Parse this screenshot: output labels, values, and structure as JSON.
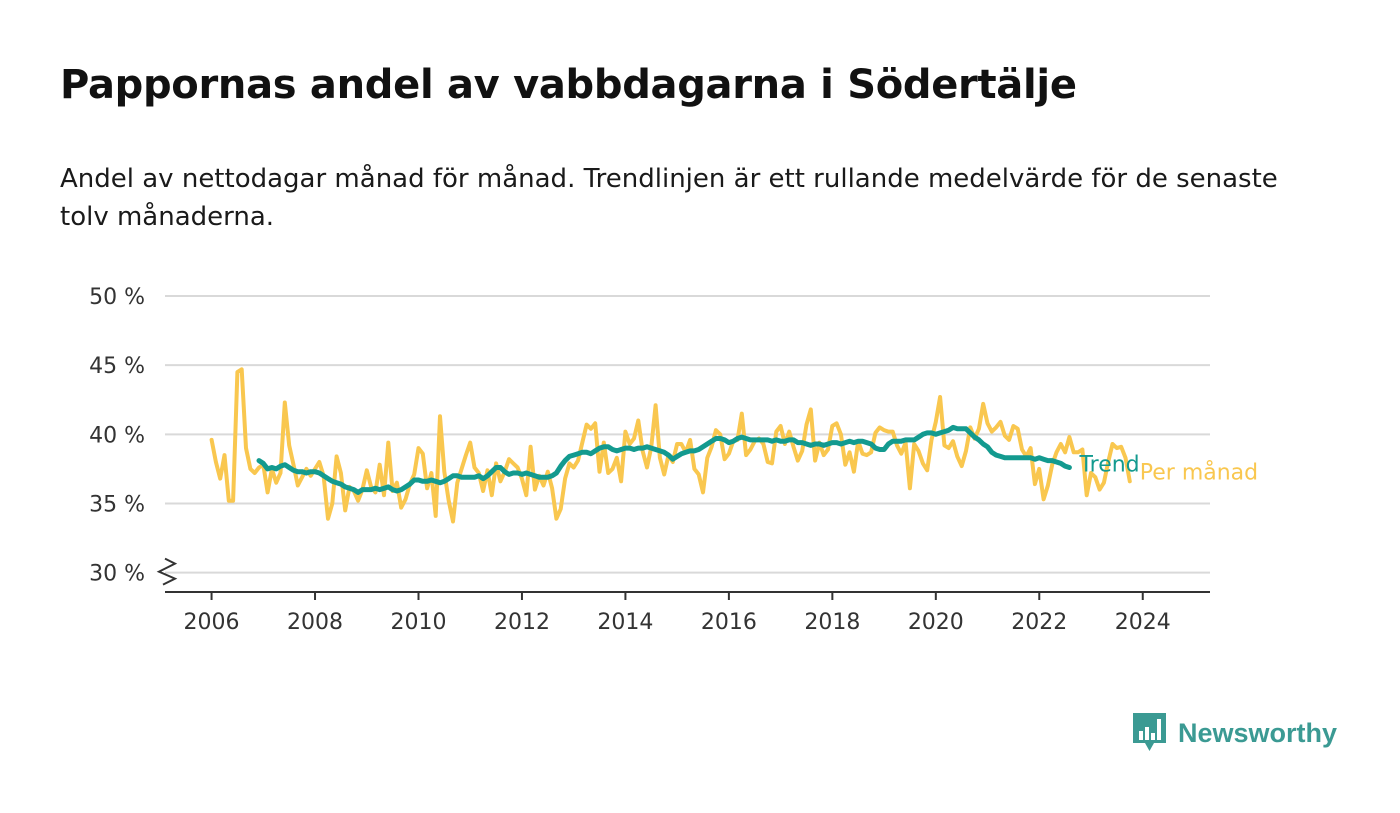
{
  "title": "Pappornas andel av vabbdagarna i Södertälje",
  "subtitle": "Andel av nettodagar månad för månad. Trendlinjen är ett rullande medelvärde för de senaste tolv månaderna.",
  "brand": {
    "name": "Newsworthy",
    "icon": "newsworthy-logo-icon",
    "color": "#3b9a93"
  },
  "chart_data": {
    "type": "line",
    "title": "Pappornas andel av vabbdagarna i Södertälje",
    "subtitle": "Andel av nettodagar månad för månad. Trendlinjen är ett rullande medelvärde för de senaste tolv månaderna.",
    "xlabel": "",
    "ylabel": "",
    "xlim": [
      2005.1,
      2025.3
    ],
    "ylim": [
      28.6,
      50
    ],
    "y_axis_break": true,
    "grid": "horizontal",
    "x_ticks": [
      {
        "value": 2006,
        "label": "2006"
      },
      {
        "value": 2008,
        "label": "2008"
      },
      {
        "value": 2010,
        "label": "2010"
      },
      {
        "value": 2012,
        "label": "2012"
      },
      {
        "value": 2014,
        "label": "2014"
      },
      {
        "value": 2016,
        "label": "2016"
      },
      {
        "value": 2018,
        "label": "2018"
      },
      {
        "value": 2020,
        "label": "2020"
      },
      {
        "value": 2022,
        "label": "2022"
      },
      {
        "value": 2024,
        "label": "2024"
      }
    ],
    "y_ticks": [
      {
        "value": 30,
        "label": "30 %"
      },
      {
        "value": 35,
        "label": "35 %"
      },
      {
        "value": 40,
        "label": "40 %"
      },
      {
        "value": 45,
        "label": "45 %"
      },
      {
        "value": 50,
        "label": "50 %"
      }
    ],
    "series": [
      {
        "name": "Per månad",
        "color": "#f9c74f",
        "x_start": 2006.0,
        "step": 0.08333,
        "values": [
          39.6,
          38,
          36.8,
          38.5,
          35.2,
          35.2,
          44.5,
          44.7,
          39,
          37.5,
          37.2,
          37.6,
          37.8,
          35.8,
          37.5,
          36.5,
          37.2,
          42.3,
          39.2,
          37.8,
          36.3,
          36.9,
          37.5,
          37,
          37.5,
          38,
          37,
          33.9,
          35,
          38.4,
          37.2,
          34.5,
          36.2,
          35.9,
          35.2,
          36,
          37.4,
          36.2,
          35.8,
          37.8,
          35.6,
          39.4,
          35.9,
          36.5,
          34.7,
          35.3,
          36.4,
          37.1,
          39,
          38.6,
          36.1,
          37.2,
          34.1,
          41.3,
          37.3,
          35.2,
          33.7,
          36.5,
          37.5,
          38.5,
          39.4,
          37.6,
          37.2,
          35.9,
          37.4,
          35.6,
          37.9,
          36.6,
          37.3,
          38.2,
          37.9,
          37.6,
          36.8,
          35.6,
          39.1,
          36,
          37,
          36.3,
          37.3,
          36.1,
          33.9,
          34.6,
          36.8,
          37.9,
          37.6,
          38.1,
          39.4,
          40.7,
          40.4,
          40.8,
          37.3,
          39.4,
          37.2,
          37.5,
          38.3,
          36.6,
          40.2,
          39.3,
          39.7,
          41,
          38.8,
          37.6,
          39.1,
          42.1,
          38.3,
          37.1,
          38.5,
          38,
          39.3,
          39.3,
          38.7,
          39.6,
          37.5,
          37.1,
          35.8,
          38.3,
          39.1,
          40.3,
          40,
          38.2,
          38.6,
          39.5,
          39.6,
          41.5,
          38.5,
          38.9,
          39.5,
          39.7,
          39.3,
          38,
          37.9,
          40.2,
          40.6,
          39.3,
          40.2,
          39.1,
          38.1,
          38.8,
          40.7,
          41.8,
          38.1,
          39.4,
          38.5,
          38.9,
          40.6,
          40.8,
          40,
          37.8,
          38.7,
          37.3,
          39.5,
          38.6,
          38.5,
          38.7,
          40.1,
          40.5,
          40.3,
          40.2,
          40.2,
          39.2,
          38.6,
          39.4,
          36.1,
          39.3,
          38.8,
          37.9,
          37.4,
          39.6,
          40.9,
          42.7,
          39.2,
          39,
          39.5,
          38.4,
          37.7,
          38.8,
          40.5,
          39.7,
          40.4,
          42.2,
          40.8,
          40.2,
          40.5,
          40.9,
          39.9,
          39.6,
          40.6,
          40.4,
          38.9,
          38.4,
          39,
          36.4,
          37.5,
          35.3,
          36.3,
          37.8,
          38.7,
          39.3,
          38.7,
          39.8,
          38.7,
          38.7,
          38.9,
          35.6,
          37.2,
          36.9,
          36,
          36.5,
          38,
          39.3,
          39,
          39.1,
          38.3,
          36.6
        ]
      },
      {
        "name": "Trend",
        "color": "#139a8f",
        "x_start": 2006.917,
        "step": 0.08333,
        "values": [
          38.1,
          37.9,
          37.5,
          37.6,
          37.5,
          37.7,
          37.8,
          37.6,
          37.4,
          37.3,
          37.3,
          37.2,
          37.3,
          37.3,
          37.2,
          37,
          36.8,
          36.6,
          36.5,
          36.4,
          36.2,
          36.1,
          36,
          35.8,
          36,
          36,
          36,
          36.1,
          36,
          36.1,
          36.2,
          36,
          35.9,
          36,
          36.2,
          36.4,
          36.7,
          36.7,
          36.6,
          36.6,
          36.7,
          36.6,
          36.5,
          36.6,
          36.8,
          37,
          37,
          36.9,
          36.9,
          36.9,
          36.9,
          37,
          36.8,
          37,
          37.3,
          37.6,
          37.6,
          37.3,
          37.1,
          37.2,
          37.2,
          37.1,
          37.2,
          37.1,
          37,
          36.9,
          36.9,
          36.9,
          37,
          37.2,
          37.7,
          38.1,
          38.4,
          38.5,
          38.6,
          38.7,
          38.7,
          38.6,
          38.8,
          39,
          39.1,
          39.1,
          38.9,
          38.8,
          38.9,
          39,
          39,
          38.9,
          39,
          39,
          39.1,
          39,
          38.9,
          38.8,
          38.7,
          38.5,
          38.2,
          38.4,
          38.6,
          38.7,
          38.8,
          38.8,
          38.9,
          39.1,
          39.3,
          39.5,
          39.7,
          39.7,
          39.6,
          39.4,
          39.5,
          39.7,
          39.8,
          39.7,
          39.6,
          39.6,
          39.6,
          39.6,
          39.6,
          39.5,
          39.6,
          39.5,
          39.5,
          39.6,
          39.6,
          39.4,
          39.4,
          39.3,
          39.2,
          39.3,
          39.3,
          39.2,
          39.3,
          39.4,
          39.4,
          39.3,
          39.4,
          39.5,
          39.4,
          39.5,
          39.5,
          39.4,
          39.3,
          39,
          38.9,
          38.9,
          39.3,
          39.5,
          39.5,
          39.5,
          39.6,
          39.6,
          39.6,
          39.8,
          40,
          40.1,
          40.1,
          40,
          40.1,
          40.2,
          40.3,
          40.5,
          40.4,
          40.4,
          40.4,
          40.1,
          39.8,
          39.6,
          39.3,
          39.1,
          38.7,
          38.5,
          38.4,
          38.3,
          38.3,
          38.3,
          38.3,
          38.3,
          38.3,
          38.3,
          38.2,
          38.3,
          38.2,
          38.1,
          38.1,
          38,
          37.9,
          37.7,
          37.6
        ]
      }
    ]
  }
}
